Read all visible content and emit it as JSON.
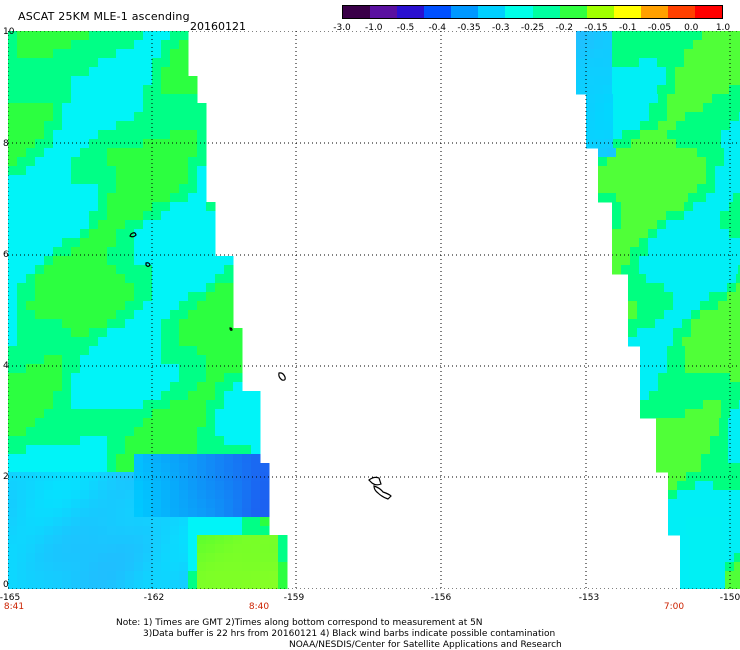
{
  "header": {
    "title": "ASCAT 25KM MLE-1 ascending",
    "date": "20160121"
  },
  "colorbar": {
    "labels": [
      "-3.0",
      "-1.0",
      "-0.5",
      "-0.4",
      "-0.35",
      "-0.3",
      "-0.25",
      "-0.2",
      "-0.15",
      "-0.1",
      "-0.05",
      "0.0",
      "1.0"
    ],
    "colors": [
      "#3a0048",
      "#5a10a0",
      "#2a10d0",
      "#0050ff",
      "#0098ff",
      "#00d0ff",
      "#00ffe8",
      "#00ffa0",
      "#30ff40",
      "#a0ff00",
      "#ffff00",
      "#ffa000",
      "#ff4000",
      "#ff0000"
    ]
  },
  "map": {
    "y_axis_labels": [
      "10",
      "8",
      "6",
      "4",
      "2",
      "0"
    ],
    "x_axis_labels": [
      "-165",
      "-162",
      "-159",
      "-156",
      "-153",
      "-150"
    ],
    "time_labels": [
      "8:41",
      "8:40",
      "7:00"
    ],
    "lat_range": [
      0,
      10
    ],
    "lon_range": [
      -165,
      -150
    ],
    "gridlines": true
  },
  "notes": {
    "line1": "Note: 1) Times are GMT 2)Times along bottom correspond to measurement at 5N",
    "line2": "3)Data buffer is 22 hrs from 20160121 4) Black wind barbs indicate possible contamination",
    "line3": "NOAA/NESDIS/Center for Satellite Applications and Research"
  }
}
